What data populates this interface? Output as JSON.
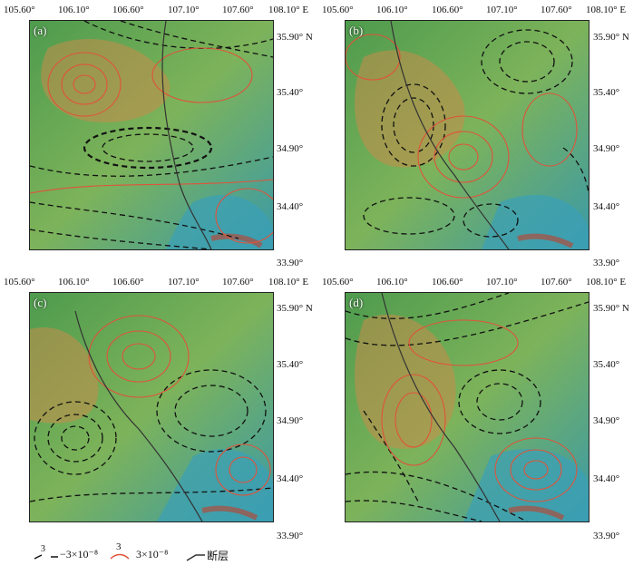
{
  "top_x_labels": [
    "105.60°",
    "106.10°",
    "106.60°",
    "107.10°",
    "107.60°",
    "108.10° E"
  ],
  "y_labels": [
    "35.90° N",
    "35.40°",
    "34.90°",
    "34.40°",
    "33.90°"
  ],
  "panels": [
    {
      "label": "(a)"
    },
    {
      "label": "(b)"
    },
    {
      "label": "(c)"
    },
    {
      "label": "(d)"
    }
  ],
  "legend": {
    "negative_symbol": "3",
    "negative_text": "−3×10⁻⁸",
    "positive_symbol": "3",
    "positive_text": "3×10⁻⁸",
    "fault_text": "断层"
  },
  "colors": {
    "negative_contour": "#111111",
    "positive_contour": "#e0533a",
    "fault": "#333333"
  }
}
